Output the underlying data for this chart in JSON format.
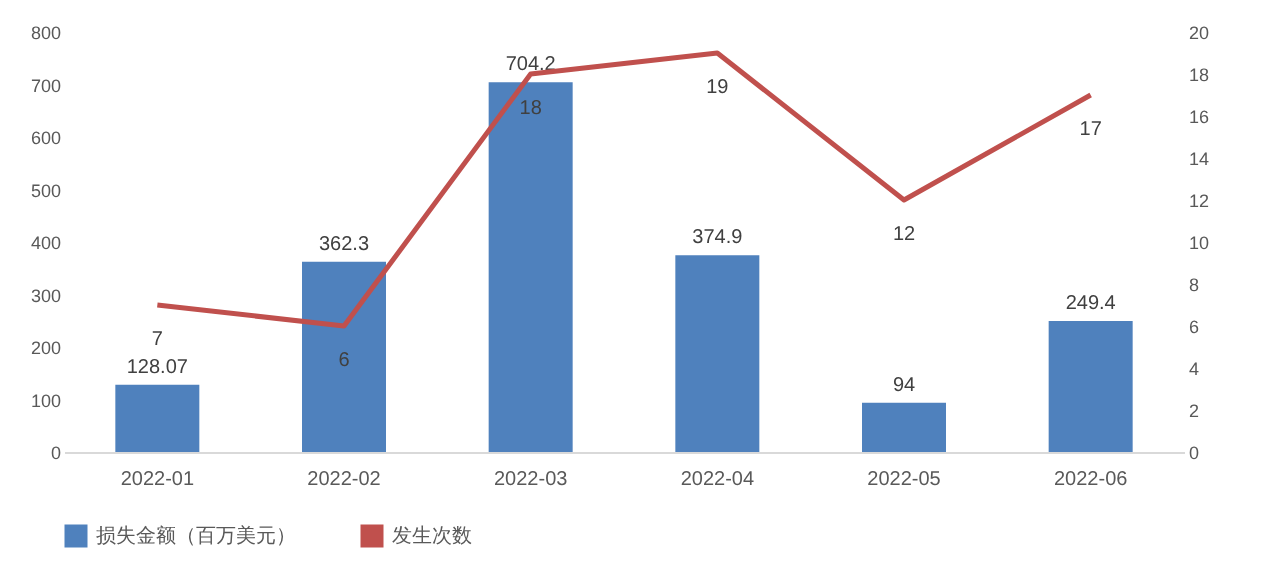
{
  "chart_data": {
    "type": "bar",
    "categories": [
      "2022-01",
      "2022-02",
      "2022-03",
      "2022-04",
      "2022-05",
      "2022-06"
    ],
    "series": [
      {
        "name": "损失金额（百万美元）",
        "color": "#4f81bd",
        "values": [
          128.07,
          362.3,
          704.2,
          374.9,
          94,
          249.4
        ]
      },
      {
        "name": "发生次数",
        "type": "line",
        "axis": "y2",
        "color": "#c0504d",
        "values": [
          7,
          6,
          18,
          19,
          12,
          17
        ]
      }
    ],
    "ylim": [
      0,
      800
    ],
    "yticks": [
      0,
      100,
      200,
      300,
      400,
      500,
      600,
      700,
      800
    ],
    "y2lim": [
      0,
      20
    ],
    "y2ticks": [
      0,
      2,
      4,
      6,
      8,
      10,
      12,
      14,
      16,
      18,
      20
    ],
    "data_labels": true,
    "legend": "bottom",
    "grid": false,
    "marker": "none",
    "line_style": "solid"
  }
}
